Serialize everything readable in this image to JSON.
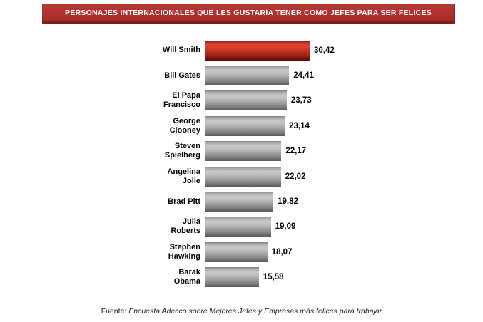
{
  "banner": {
    "title": "PERSONAJES INTERNACIONALES QUE LES GUSTARÍA TENER COMO JEFES PARA SER FELICES"
  },
  "colors": {
    "banner_bg": "#AE312D",
    "banner_border_bottom": "#7C1F1B",
    "banner_text": "#FFFFFF",
    "bar_highlight_red": "#D23A2B",
    "bar_default_gray": "#A8A8A8",
    "label_text": "#000000"
  },
  "chart_data": {
    "type": "bar",
    "orientation": "horizontal",
    "title": "PERSONAJES INTERNACIONALES QUE LES GUSTARÍA TENER COMO JEFES PARA SER FELICES",
    "categories": [
      "Will Smith",
      "Bill Gates",
      "El Papa Francisco",
      "George Clooney",
      "Steven Spielberg",
      "Angelina Jolie",
      "Brad Pitt",
      "Julia Roberts",
      "Stephen Hawking",
      "Barak Obama"
    ],
    "category_lines": [
      [
        "Will Smith"
      ],
      [
        "Bill Gates"
      ],
      [
        "El Papa",
        "Francisco"
      ],
      [
        "George",
        "Clooney"
      ],
      [
        "Steven",
        "Spielberg"
      ],
      [
        "Angelina",
        "Jolie"
      ],
      [
        "Brad Pitt"
      ],
      [
        "Julia",
        "Roberts"
      ],
      [
        "Stephen",
        "Hawking"
      ],
      [
        "Barak",
        "Obama"
      ]
    ],
    "values": [
      30.42,
      24.41,
      23.73,
      23.14,
      22.17,
      22.02,
      19.82,
      19.09,
      18.07,
      15.58
    ],
    "value_labels": [
      "30,42",
      "24,41",
      "23,73",
      "23,14",
      "22,17",
      "22,02",
      "19,82",
      "19,09",
      "18,07",
      "15,58"
    ],
    "highlight_index": 0,
    "data_labels": true,
    "axis_visible": false,
    "xlim": [
      0,
      30.42
    ],
    "legend": null
  },
  "footer": {
    "prefix": "Fuente: ",
    "source": "Encuesta Adecco sobre Mejores Jefes y Empresas más felices para trabajar"
  }
}
